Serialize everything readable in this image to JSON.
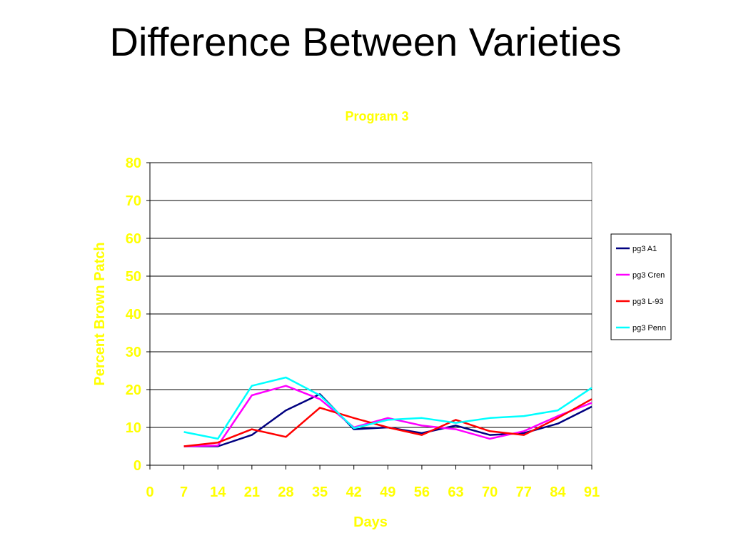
{
  "slide": {
    "title": "Difference Between Varieties"
  },
  "chart_data": {
    "type": "line",
    "title": "Program 3",
    "xlabel": "Days",
    "ylabel": "Percent Brown Patch",
    "x_ticks": [
      0,
      7,
      14,
      21,
      28,
      35,
      42,
      49,
      56,
      63,
      70,
      77,
      84,
      91
    ],
    "y_ticks": [
      0,
      10,
      20,
      30,
      40,
      50,
      60,
      70,
      80
    ],
    "xlim": [
      0,
      91
    ],
    "ylim": [
      0,
      80
    ],
    "grid": "horizontal",
    "legend_position": "right",
    "x": [
      7,
      14,
      21,
      28,
      35,
      42,
      49,
      56,
      63,
      70,
      77,
      84,
      91
    ],
    "series": [
      {
        "name": "pg3 A1",
        "color": "#000080",
        "values": [
          5,
          5,
          8,
          14.5,
          18.8,
          9.5,
          10,
          8.5,
          10.5,
          8,
          8.5,
          11,
          15.5
        ]
      },
      {
        "name": "pg3 Cren",
        "color": "#ff00ff",
        "values": [
          5,
          5.2,
          18.5,
          21,
          17.5,
          10,
          12.5,
          10.5,
          9.5,
          7,
          9,
          13,
          16.5
        ]
      },
      {
        "name": "pg3 L-93",
        "color": "#ff0000",
        "values": [
          5,
          6,
          9.5,
          7.5,
          15.2,
          12.5,
          10,
          8,
          12,
          9,
          8,
          12.5,
          17.5
        ]
      },
      {
        "name": "pg3 Penn",
        "color": "#00ffff",
        "values": [
          8.8,
          7,
          21,
          23.2,
          18.5,
          9.8,
          12,
          12.5,
          11.2,
          12.5,
          13,
          14.5,
          20.5
        ]
      }
    ],
    "text_color": "#ffff00"
  }
}
